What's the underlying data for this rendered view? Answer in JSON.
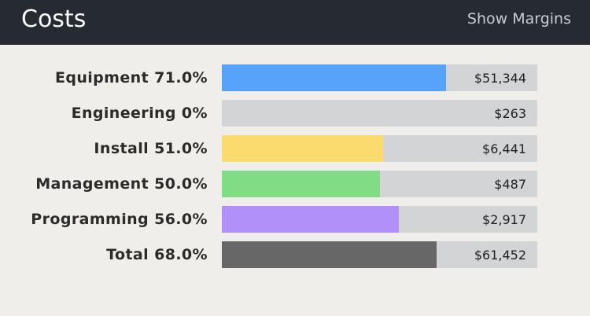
{
  "header": {
    "title": "Costs",
    "toggle_label": "Show Margins"
  },
  "rows": [
    {
      "name": "Equipment",
      "label": "Equipment 71.0%",
      "percent": 71.0,
      "value": "$51,344",
      "color": "#57a2fb"
    },
    {
      "name": "Engineering",
      "label": "Engineering 0%",
      "percent": 0,
      "value": "$263",
      "color": "#cfd1d4"
    },
    {
      "name": "Install",
      "label": "Install 51.0%",
      "percent": 51.0,
      "value": "$6,441",
      "color": "#fbdb6d"
    },
    {
      "name": "Management",
      "label": "Management 50.0%",
      "percent": 50.0,
      "value": "$487",
      "color": "#80dd85"
    },
    {
      "name": "Programming",
      "label": "Programming 56.0%",
      "percent": 56.0,
      "value": "$2,917",
      "color": "#b290fa"
    },
    {
      "name": "Total",
      "label": "Total 68.0%",
      "percent": 68.0,
      "value": "$61,452",
      "color": "#676767"
    }
  ]
}
